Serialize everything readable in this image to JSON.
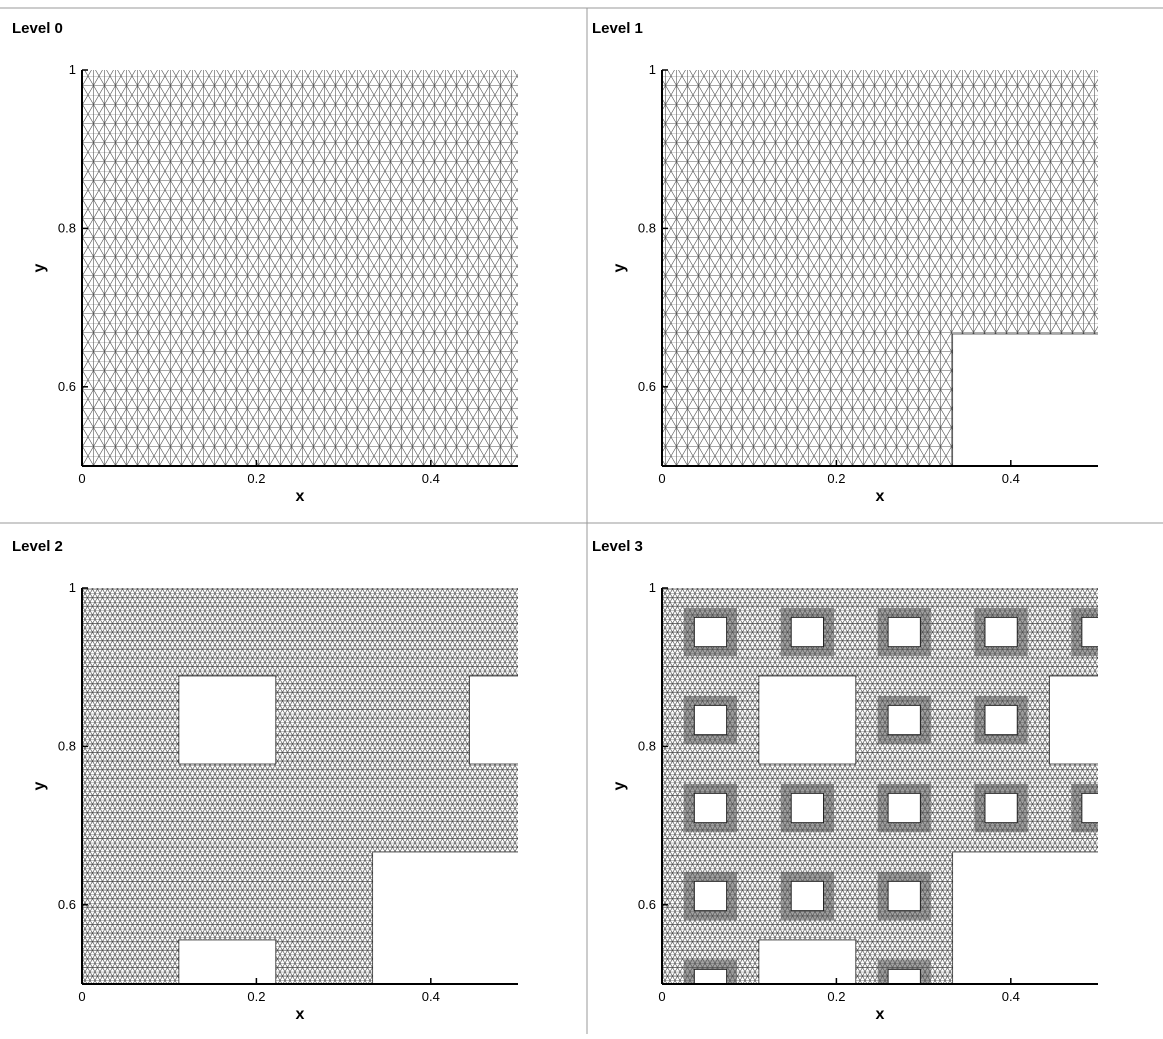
{
  "chart_data": [
    {
      "type": "mesh",
      "title": "Level 0",
      "xlabel": "x",
      "ylabel": "y",
      "xlim": [
        0,
        0.5
      ],
      "ylim": [
        0.5,
        1
      ],
      "xticks": [
        0,
        0.2,
        0.4
      ],
      "yticks": [
        1,
        0.8,
        0.6
      ]
    },
    {
      "type": "mesh",
      "title": "Level 1",
      "xlabel": "x",
      "ylabel": "y",
      "xlim": [
        0,
        0.5
      ],
      "ylim": [
        0.5,
        1
      ],
      "xticks": [
        0,
        0.2,
        0.4
      ],
      "yticks": [
        1,
        0.8,
        0.6
      ]
    },
    {
      "type": "mesh",
      "title": "Level 2",
      "xlabel": "x",
      "ylabel": "y",
      "xlim": [
        0,
        0.5
      ],
      "ylim": [
        0.5,
        1
      ],
      "xticks": [
        0,
        0.2,
        0.4
      ],
      "yticks": [
        1,
        0.8,
        0.6
      ]
    },
    {
      "type": "mesh",
      "title": "Level 3",
      "xlabel": "x",
      "ylabel": "y",
      "xlim": [
        0,
        0.5
      ],
      "ylim": [
        0.5,
        1
      ],
      "xticks": [
        0,
        0.2,
        0.4
      ],
      "yticks": [
        1,
        0.8,
        0.6
      ]
    }
  ]
}
